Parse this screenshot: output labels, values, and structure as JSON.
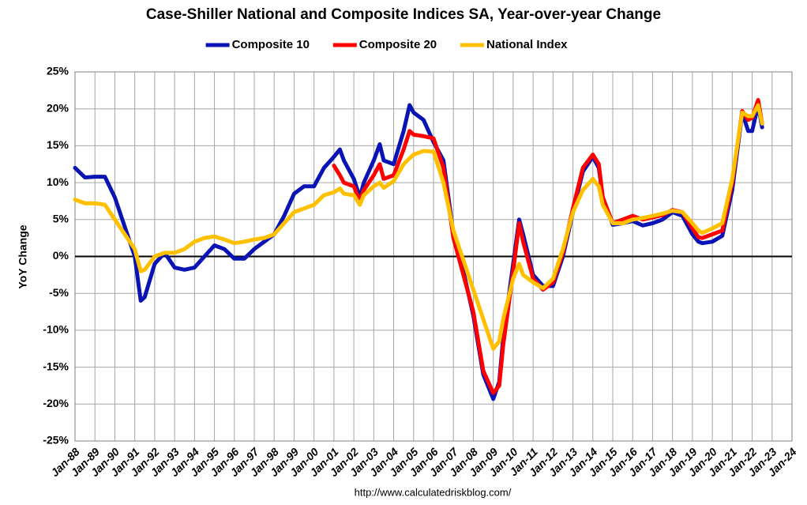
{
  "chart_data": {
    "type": "line",
    "title": "Case-Shiller National and Composite Indices SA, Year-over-year Change",
    "y_label": "YoY Change",
    "source": "http://www.calculatedriskblog.com/",
    "grid": true,
    "legend": "top",
    "x": [
      1988.0,
      1988.5,
      1989.0,
      1989.5,
      1990.0,
      1990.5,
      1991.0,
      1991.3,
      1991.5,
      1992.0,
      1992.5,
      1993.0,
      1993.5,
      1994.0,
      1994.5,
      1995.0,
      1995.5,
      1996.0,
      1996.5,
      1997.0,
      1997.5,
      1998.0,
      1998.5,
      1999.0,
      1999.5,
      2000.0,
      2000.5,
      2001.0,
      2001.3,
      2001.5,
      2002.0,
      2002.3,
      2002.5,
      2003.0,
      2003.3,
      2003.5,
      2004.0,
      2004.5,
      2004.8,
      2005.0,
      2005.5,
      2006.0,
      2006.5,
      2007.0,
      2007.5,
      2008.0,
      2008.5,
      2009.0,
      2009.3,
      2009.5,
      2010.0,
      2010.3,
      2010.5,
      2011.0,
      2011.5,
      2012.0,
      2012.5,
      2013.0,
      2013.5,
      2014.0,
      2014.3,
      2014.5,
      2015.0,
      2015.5,
      2016.0,
      2016.5,
      2017.0,
      2017.5,
      2018.0,
      2018.5,
      2019.0,
      2019.3,
      2019.5,
      2020.0,
      2020.5,
      2021.0,
      2021.5,
      2021.8,
      2022.0,
      2022.3,
      2022.5
    ],
    "series": [
      {
        "name": "Composite 10",
        "color": "#0a14b4",
        "values": [
          12,
          10.7,
          10.8,
          10.8,
          8,
          4,
          0,
          -6,
          -5.5,
          -1,
          0.5,
          -1.5,
          -1.8,
          -1.5,
          0,
          1.5,
          1,
          -0.3,
          -0.3,
          1,
          2,
          3,
          5.5,
          8.5,
          9.5,
          9.5,
          12,
          13.5,
          14.5,
          13,
          10.5,
          8,
          10,
          13,
          15.2,
          13,
          12.5,
          17,
          20.5,
          19.5,
          18.5,
          15.5,
          13,
          3,
          -2,
          -8,
          -16,
          -19.3,
          -17,
          -11,
          -1,
          5,
          3,
          -2.5,
          -4,
          -4,
          0,
          6,
          11.5,
          13.5,
          12,
          8,
          4.3,
          4.5,
          4.8,
          4.2,
          4.5,
          5,
          6,
          5.5,
          3,
          2,
          1.8,
          2,
          2.8,
          9,
          19.5,
          17,
          17,
          20.5,
          17.5
        ]
      },
      {
        "name": "Composite 20",
        "color": "#ff0000",
        "values": [
          null,
          null,
          null,
          null,
          null,
          null,
          null,
          null,
          null,
          null,
          null,
          null,
          null,
          null,
          null,
          null,
          null,
          null,
          null,
          null,
          null,
          null,
          null,
          null,
          null,
          null,
          null,
          12.3,
          11,
          10,
          9.5,
          7.5,
          9,
          11,
          12.5,
          10.5,
          11,
          14.5,
          17,
          16.5,
          16.3,
          16,
          12,
          2.5,
          -2.5,
          -7.5,
          -15.5,
          -18.5,
          -17.5,
          -12,
          -2,
          4.5,
          2,
          -3,
          -4.5,
          -3.5,
          0.5,
          6.5,
          12,
          13.8,
          12.5,
          8,
          4.5,
          5,
          5.5,
          5,
          5.3,
          5.6,
          6.3,
          6,
          3.8,
          2.6,
          2.5,
          3,
          3.5,
          10,
          19.7,
          18.5,
          18.8,
          21.2,
          18
        ]
      },
      {
        "name": "National Index",
        "color": "#ffc000",
        "values": [
          7.7,
          7.2,
          7.2,
          7,
          5,
          3,
          1,
          -2,
          -1.8,
          0,
          0.5,
          0.5,
          1,
          2,
          2.5,
          2.7,
          2.3,
          1.8,
          2,
          2.3,
          2.5,
          3,
          4.5,
          6,
          6.5,
          7,
          8.3,
          8.7,
          9.2,
          8.5,
          8.3,
          7,
          8.3,
          9.5,
          10,
          9.3,
          10.2,
          12.5,
          13.3,
          13.8,
          14.3,
          14.2,
          10,
          3.5,
          -0.5,
          -4.5,
          -8.5,
          -12.5,
          -11.5,
          -8.5,
          -3,
          -1,
          -2.5,
          -3.5,
          -4.3,
          -3,
          1,
          6,
          9,
          10.5,
          9.5,
          7,
          4.5,
          4.5,
          5,
          5.2,
          5.5,
          5.8,
          6.2,
          6,
          4.5,
          3.5,
          3.2,
          3.8,
          4.5,
          10.5,
          19.5,
          19,
          19,
          20.5,
          18
        ]
      }
    ],
    "xlim": [
      1988,
      2024
    ],
    "xticks": [
      {
        "value": 1988,
        "label": "Jan-88"
      },
      {
        "value": 1989,
        "label": "Jan-89"
      },
      {
        "value": 1990,
        "label": "Jan-90"
      },
      {
        "value": 1991,
        "label": "Jan-91"
      },
      {
        "value": 1992,
        "label": "Jan-92"
      },
      {
        "value": 1993,
        "label": "Jan-93"
      },
      {
        "value": 1994,
        "label": "Jan-94"
      },
      {
        "value": 1995,
        "label": "Jan-95"
      },
      {
        "value": 1996,
        "label": "Jan-96"
      },
      {
        "value": 1997,
        "label": "Jan-97"
      },
      {
        "value": 1998,
        "label": "Jan-98"
      },
      {
        "value": 1999,
        "label": "Jan-99"
      },
      {
        "value": 2000,
        "label": "Jan-00"
      },
      {
        "value": 2001,
        "label": "Jan-01"
      },
      {
        "value": 2002,
        "label": "Jan-02"
      },
      {
        "value": 2003,
        "label": "Jan-03"
      },
      {
        "value": 2004,
        "label": "Jan-04"
      },
      {
        "value": 2005,
        "label": "Jan-05"
      },
      {
        "value": 2006,
        "label": "Jan-06"
      },
      {
        "value": 2007,
        "label": "Jan-07"
      },
      {
        "value": 2008,
        "label": "Jan-08"
      },
      {
        "value": 2009,
        "label": "Jan-09"
      },
      {
        "value": 2010,
        "label": "Jan-10"
      },
      {
        "value": 2011,
        "label": "Jan-11"
      },
      {
        "value": 2012,
        "label": "Jan-12"
      },
      {
        "value": 2013,
        "label": "Jan-13"
      },
      {
        "value": 2014,
        "label": "Jan-14"
      },
      {
        "value": 2015,
        "label": "Jan-15"
      },
      {
        "value": 2016,
        "label": "Jan-16"
      },
      {
        "value": 2017,
        "label": "Jan-17"
      },
      {
        "value": 2018,
        "label": "Jan-18"
      },
      {
        "value": 2019,
        "label": "Jan-19"
      },
      {
        "value": 2020,
        "label": "Jan-20"
      },
      {
        "value": 2021,
        "label": "Jan-21"
      },
      {
        "value": 2022,
        "label": "Jan-22"
      },
      {
        "value": 2023,
        "label": "Jan-23"
      },
      {
        "value": 2024,
        "label": "Jan-24"
      }
    ],
    "ylim": [
      -25,
      25
    ],
    "yticks": [
      {
        "value": -25,
        "label": "-25%"
      },
      {
        "value": -20,
        "label": "-20%"
      },
      {
        "value": -15,
        "label": "-15%"
      },
      {
        "value": -10,
        "label": "-10%"
      },
      {
        "value": -5,
        "label": "-5%"
      },
      {
        "value": 0,
        "label": "0%"
      },
      {
        "value": 5,
        "label": "5%"
      },
      {
        "value": 10,
        "label": "10%"
      },
      {
        "value": 15,
        "label": "15%"
      },
      {
        "value": 20,
        "label": "20%"
      },
      {
        "value": 25,
        "label": "25%"
      }
    ]
  }
}
